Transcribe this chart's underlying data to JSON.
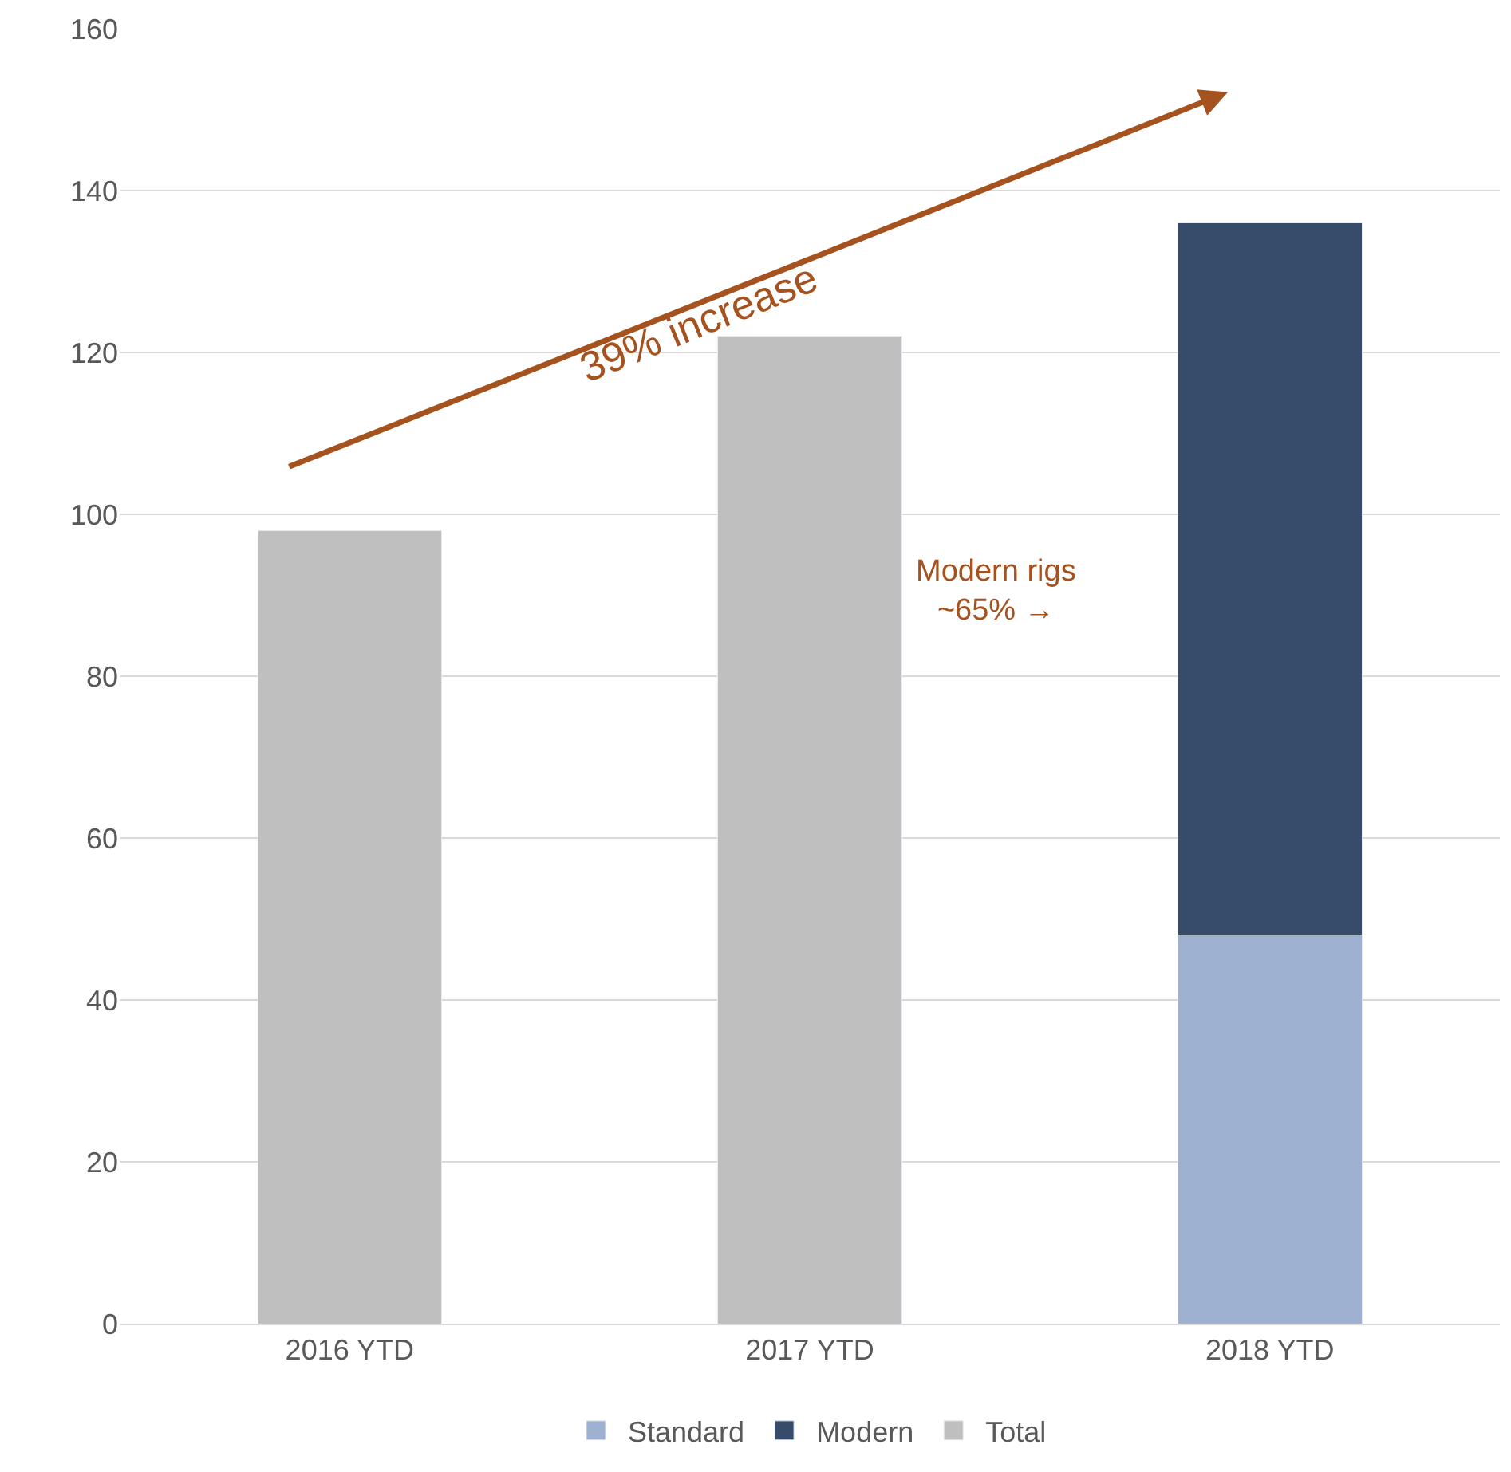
{
  "chart_data": {
    "type": "bar",
    "stacked": true,
    "categories": [
      "2016 YTD",
      "2017 YTD",
      "2018 YTD"
    ],
    "series": [
      {
        "name": "Standard",
        "color": "#9fb1d0",
        "values": [
          null,
          null,
          48
        ]
      },
      {
        "name": "Modern",
        "color": "#374b6a",
        "values": [
          null,
          null,
          88
        ]
      },
      {
        "name": "Total",
        "color": "#bfbfbf",
        "values": [
          98,
          122,
          null
        ]
      }
    ],
    "ylim": [
      0,
      160
    ],
    "yticks": [
      0,
      20,
      40,
      60,
      80,
      100,
      120,
      140,
      160
    ],
    "grid": "y",
    "legend": "bottom",
    "annotations": [
      "39% increase",
      "Modern rigs\n~65% →"
    ]
  }
}
